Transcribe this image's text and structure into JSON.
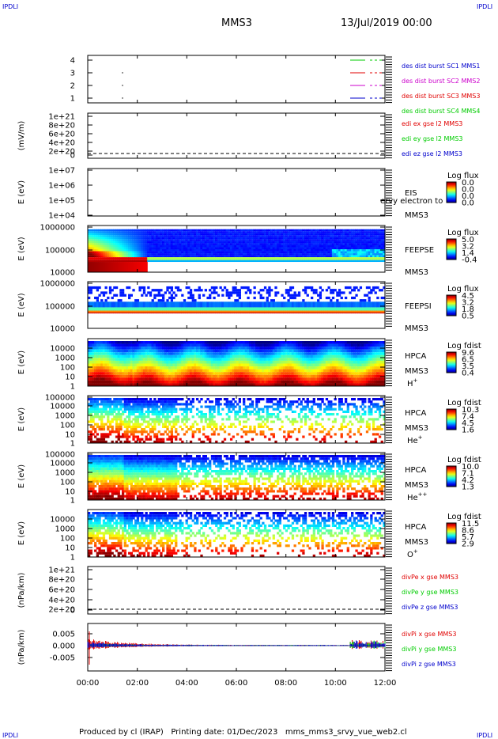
{
  "header": {
    "corner_logo": "IPDLI",
    "spacecraft": "MMS3",
    "date": "13/Jul/2019 00:00"
  },
  "footer": {
    "text": "Produced by cl (IRAP)   Printing date: 01/Dec/2023   mms_mms3_srvy_vue_web2.cl"
  },
  "colors": {
    "red": "#e00000",
    "green": "#00cc00",
    "blue": "#0000cc",
    "magenta": "#cc00cc",
    "dash": "#000000"
  },
  "chart_data": {
    "type": "multi-panel",
    "x_axis": {
      "range": [
        "00:00",
        "12:00"
      ],
      "ticks": [
        "00:00",
        "02:00",
        "04:00",
        "06:00",
        "08:00",
        "10:00",
        "12:00"
      ]
    },
    "panels": [
      {
        "id": "burst",
        "type": "timeline",
        "yticks": [
          "4",
          "3",
          "2",
          "1"
        ],
        "legend": [
          {
            "name": "des dist burst SC1 MMS1",
            "color": "#0000cc"
          },
          {
            "name": "des dist burst SC2 MMS2",
            "color": "#cc00cc"
          },
          {
            "name": "des dist burst SC3 MMS3",
            "color": "#e00000"
          },
          {
            "name": "des dist burst SC4 MMS4",
            "color": "#00cc00"
          }
        ]
      },
      {
        "id": "edi",
        "type": "line",
        "ylabel": "(mV/m)",
        "yticks": [
          "1e+21",
          "8e+20",
          "6e+20",
          "4e+20",
          "2e+20",
          "0"
        ],
        "legend": [
          {
            "name": "edi ex gse l2 MMS3",
            "color": "#e00000"
          },
          {
            "name": "edi ey gse l2 MMS3",
            "color": "#00cc00"
          },
          {
            "name": "edi ez gse l2 MMS3",
            "color": "#0000cc"
          }
        ]
      },
      {
        "id": "eis",
        "type": "spectrogram",
        "ylabel": "E (eV)",
        "yticks": [
          "1e+07",
          "1e+06",
          "1e+05",
          "1e+04"
        ],
        "instrument": "EIS",
        "spacecraft": "MMS3",
        "overlap_label": "ervy electron to",
        "colorbar": {
          "title": "Log flux",
          "ticks": [
            "0.0",
            "0.0",
            "0.0",
            "0.0"
          ]
        }
      },
      {
        "id": "feepse",
        "type": "spectrogram",
        "ylabel": "E (eV)",
        "yticks": [
          "1000000",
          "100000",
          "10000"
        ],
        "instrument": "FEEPSE",
        "spacecraft": "MMS3",
        "colorbar": {
          "title": "Log flux",
          "ticks": [
            "5.0",
            "3.2",
            "1.4",
            "-0.4"
          ]
        }
      },
      {
        "id": "feepsi",
        "type": "spectrogram",
        "ylabel": "E (eV)",
        "yticks": [
          "1000000",
          "100000",
          "10000"
        ],
        "instrument": "FEEPSI",
        "spacecraft": "MMS3",
        "colorbar": {
          "title": "Log flux",
          "ticks": [
            "4.5",
            "3.2",
            "1.8",
            "0.5"
          ]
        }
      },
      {
        "id": "hpca_h",
        "type": "spectrogram",
        "ylabel": "E (eV)",
        "yticks": [
          "10000",
          "1000",
          "100",
          "10",
          "1"
        ],
        "instrument": "HPCA",
        "spacecraft": "MMS3",
        "species": "H",
        "charge": "+",
        "colorbar": {
          "title": "Log fdist",
          "ticks": [
            "9.6",
            "6.5",
            "3.5",
            "0.4"
          ]
        }
      },
      {
        "id": "hpca_he1",
        "type": "spectrogram",
        "ylabel": "E (eV)",
        "yticks": [
          "100000",
          "10000",
          "1000",
          "100",
          "10",
          "1"
        ],
        "instrument": "HPCA",
        "spacecraft": "MMS3",
        "species": "He",
        "charge": "+",
        "colorbar": {
          "title": "Log fdist",
          "ticks": [
            "10.3",
            "7.4",
            "4.5",
            "1.6"
          ]
        }
      },
      {
        "id": "hpca_he2",
        "type": "spectrogram",
        "ylabel": "E (eV)",
        "yticks": [
          "100000",
          "10000",
          "1000",
          "100",
          "10",
          "1"
        ],
        "instrument": "HPCA",
        "spacecraft": "MMS3",
        "species": "He",
        "charge": "++",
        "colorbar": {
          "title": "Log fdist",
          "ticks": [
            "10.0",
            "7.1",
            "4.2",
            "1.3"
          ]
        }
      },
      {
        "id": "hpca_o",
        "type": "spectrogram",
        "ylabel": "E (eV)",
        "yticks": [
          "10000",
          "1000",
          "100",
          "10",
          "1"
        ],
        "instrument": "HPCA",
        "spacecraft": "MMS3",
        "species": "O",
        "charge": "+",
        "colorbar": {
          "title": "Log fdist",
          "ticks": [
            "11.5",
            "8.6",
            "5.7",
            "2.9"
          ]
        }
      },
      {
        "id": "divpe",
        "type": "line",
        "ylabel": "(nPa/km)",
        "yticks": [
          "1e+21",
          "8e+20",
          "6e+20",
          "4e+20",
          "2e+20",
          "0"
        ],
        "legend": [
          {
            "name": "divPe x gse MMS3",
            "color": "#e00000"
          },
          {
            "name": "divPe y gse MMS3",
            "color": "#00cc00"
          },
          {
            "name": "divPe z gse MMS3",
            "color": "#0000cc"
          }
        ]
      },
      {
        "id": "divpi",
        "type": "line",
        "ylabel": "(nPa/km)",
        "yticks": [
          "0.005",
          "0.000",
          "-0.005"
        ],
        "legend": [
          {
            "name": "divPi x gse MMS3",
            "color": "#e00000"
          },
          {
            "name": "divPi y gse MMS3",
            "color": "#00cc00"
          },
          {
            "name": "divPi z gse MMS3",
            "color": "#0000cc"
          }
        ]
      }
    ]
  }
}
